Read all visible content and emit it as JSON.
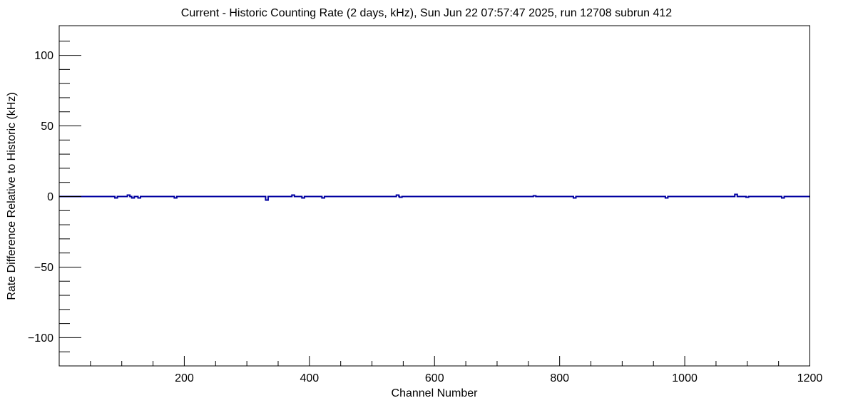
{
  "window": {
    "background_color": "#ffffff",
    "foreground_color": "#000000"
  },
  "chart_data": {
    "type": "line",
    "title": "Current - Historic Counting Rate (2 days, kHz), Sun Jun 22 07:57:47 2025, run 12708 subrun 412",
    "xlabel": "Channel Number",
    "ylabel": "Rate Difference Relative to Historic (kHz)",
    "xlim": [
      0,
      1200
    ],
    "ylim": [
      -120,
      121
    ],
    "grid": false,
    "legend": false,
    "line_color": "#0000a0",
    "axis_color": "#000000",
    "x_ticks": [
      {
        "value": 200,
        "label": "200"
      },
      {
        "value": 400,
        "label": "400"
      },
      {
        "value": 600,
        "label": "600"
      },
      {
        "value": 800,
        "label": "800"
      },
      {
        "value": 1000,
        "label": "1000"
      },
      {
        "value": 1200,
        "label": "1200"
      }
    ],
    "x_minor_step": 50,
    "y_ticks": [
      {
        "value": 100,
        "label": "100"
      },
      {
        "value": 50,
        "label": "50"
      },
      {
        "value": 0,
        "label": "0"
      },
      {
        "value": -50,
        "label": "−50"
      },
      {
        "value": -100,
        "label": "−100"
      }
    ],
    "y_minor_step": 10,
    "baseline_value": 0,
    "spike_half_width_channels": 2,
    "spikes": [
      {
        "channel": 91,
        "value": -1
      },
      {
        "channel": 111,
        "value": 1
      },
      {
        "channel": 118,
        "value": -1
      },
      {
        "channel": 128,
        "value": -1
      },
      {
        "channel": 186,
        "value": -1
      },
      {
        "channel": 332,
        "value": -2.5
      },
      {
        "channel": 374,
        "value": 1
      },
      {
        "channel": 390,
        "value": -1
      },
      {
        "channel": 422,
        "value": -1
      },
      {
        "channel": 541,
        "value": 1
      },
      {
        "channel": 546,
        "value": -0.5
      },
      {
        "channel": 760,
        "value": 0.5
      },
      {
        "channel": 824,
        "value": -1
      },
      {
        "channel": 971,
        "value": -1
      },
      {
        "channel": 1082,
        "value": 1.5
      },
      {
        "channel": 1100,
        "value": -0.5
      },
      {
        "channel": 1157,
        "value": -1
      }
    ]
  }
}
